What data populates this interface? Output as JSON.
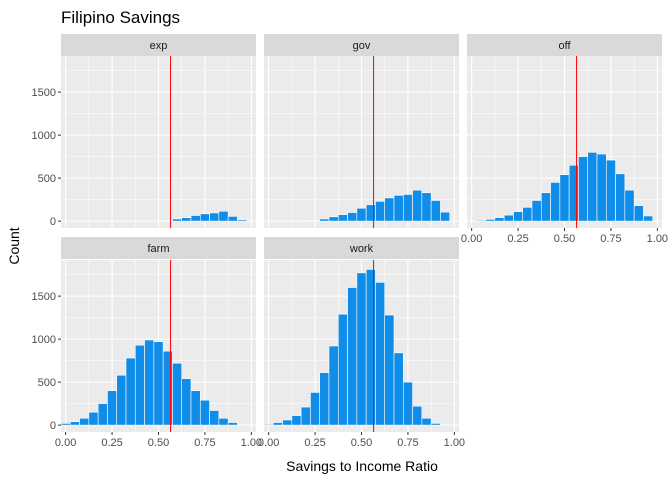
{
  "chart_data": {
    "type": "bar",
    "title": "Filipino Savings",
    "xlabel": "Savings to Income Ratio",
    "ylabel": "Count",
    "xlim": [
      -0.025,
      1.025
    ],
    "ylim": [
      -80,
      1920
    ],
    "x_ticks": [
      0,
      0.25,
      0.5,
      0.75,
      1
    ],
    "x_tick_labels": [
      "0.00",
      "0.25",
      "0.50",
      "0.75",
      "1.00"
    ],
    "y_ticks": [
      0,
      500,
      1000,
      1500
    ],
    "y_tick_labels": [
      "0",
      "500",
      "1000",
      "1500"
    ],
    "bin_width": 0.05,
    "bin_centers": [
      0,
      0.05,
      0.1,
      0.15,
      0.2,
      0.25,
      0.3,
      0.35,
      0.4,
      0.45,
      0.5,
      0.55,
      0.6,
      0.65,
      0.7,
      0.75,
      0.8,
      0.85,
      0.9,
      0.95
    ],
    "reference_line_x": 0.565,
    "grid": true,
    "bar_color": "#108de8",
    "reference_line_color": "#ff0000",
    "panels": [
      {
        "name": "exp",
        "values": [
          0,
          0,
          0,
          0,
          0,
          0,
          0,
          0,
          0,
          0,
          3,
          5,
          25,
          40,
          65,
          85,
          95,
          115,
          55,
          15
        ]
      },
      {
        "name": "gov",
        "values": [
          0,
          0,
          0,
          0,
          0,
          5,
          25,
          50,
          75,
          100,
          150,
          190,
          230,
          270,
          300,
          310,
          360,
          330,
          240,
          105
        ]
      },
      {
        "name": "off",
        "values": [
          5,
          10,
          20,
          40,
          70,
          110,
          160,
          240,
          330,
          450,
          540,
          650,
          750,
          800,
          780,
          710,
          550,
          360,
          180,
          60
        ]
      },
      {
        "name": "farm",
        "values": [
          20,
          40,
          80,
          150,
          250,
          400,
          580,
          780,
          930,
          990,
          970,
          860,
          720,
          540,
          400,
          290,
          170,
          80,
          30,
          5
        ]
      },
      {
        "name": "work",
        "values": [
          10,
          30,
          60,
          110,
          210,
          380,
          610,
          920,
          1290,
          1600,
          1770,
          1810,
          1660,
          1280,
          840,
          500,
          220,
          80,
          20,
          5
        ]
      }
    ]
  }
}
